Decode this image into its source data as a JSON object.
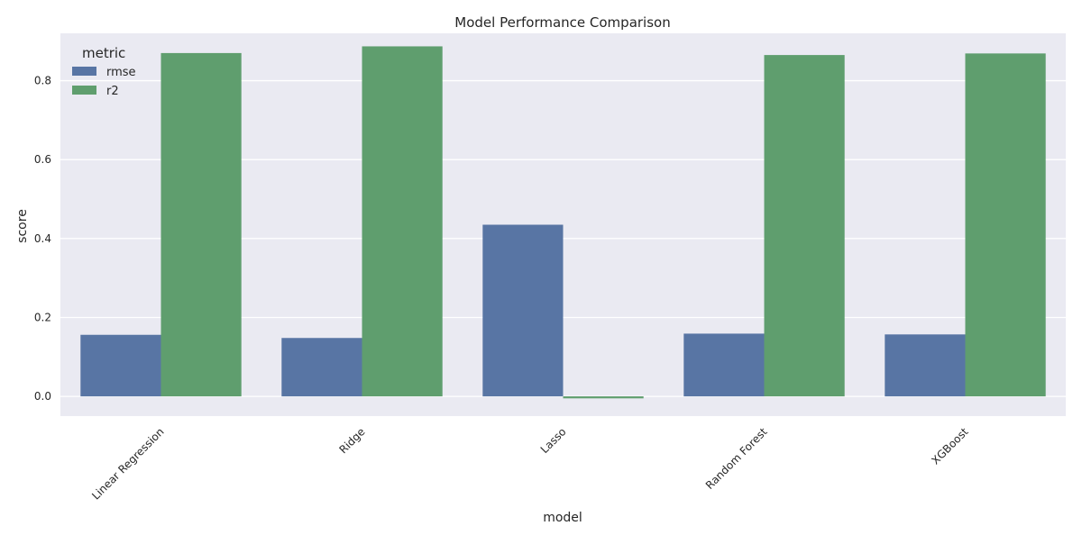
{
  "chart_data": {
    "type": "bar",
    "title": "Model Performance Comparison",
    "xlabel": "model",
    "ylabel": "score",
    "categories": [
      "Linear Regression",
      "Ridge",
      "Lasso",
      "Random Forest",
      "XGBoost"
    ],
    "series": [
      {
        "name": "rmse",
        "color": "#5875a4",
        "values": [
          0.156,
          0.148,
          0.435,
          0.159,
          0.157
        ]
      },
      {
        "name": "r2",
        "color": "#5f9e6e",
        "values": [
          0.87,
          0.887,
          -0.005,
          0.865,
          0.869
        ]
      }
    ],
    "ylim": [
      -0.05,
      0.92
    ],
    "yticks": [
      0.0,
      0.2,
      0.4,
      0.6,
      0.8
    ],
    "ytick_labels": [
      "0.0",
      "0.2",
      "0.4",
      "0.6",
      "0.8"
    ],
    "legend": {
      "title": "metric",
      "position": "top-left"
    },
    "grid": true,
    "background": "#eaeaf2",
    "gridcolor": "#ffffff",
    "xtick_rotation": 45
  }
}
